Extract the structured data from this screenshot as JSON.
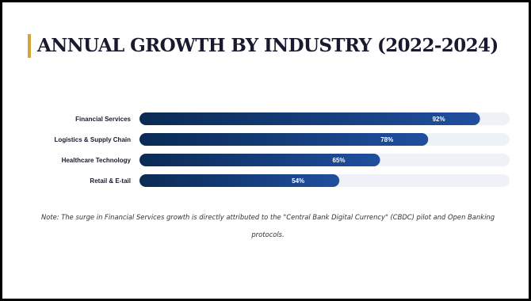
{
  "slide": {
    "title": "ANNUAL GROWTH BY INDUSTRY (2022-2024)",
    "note": "Note: The surge in Financial Services growth is directly attributed to the \"Central Bank Digital Currency\" (CBDC) pilot and Open Banking protocols."
  },
  "colors": {
    "bar_start": "#0b2a55",
    "bar_end": "#1f4f9e",
    "track": "#eef1f6",
    "accent": "#D4A63A"
  },
  "chart_data": {
    "type": "bar",
    "orientation": "horizontal",
    "categories": [
      "Financial Services",
      "Logistics & Supply Chain",
      "Healthcare Technology",
      "Retail & E-tail"
    ],
    "values": [
      92,
      78,
      65,
      54
    ],
    "value_labels": [
      "92%",
      "78%",
      "65%",
      "54%"
    ],
    "title": "",
    "xlabel": "",
    "ylabel": "",
    "xlim": [
      0,
      100
    ],
    "grid": false,
    "legend": "none"
  }
}
